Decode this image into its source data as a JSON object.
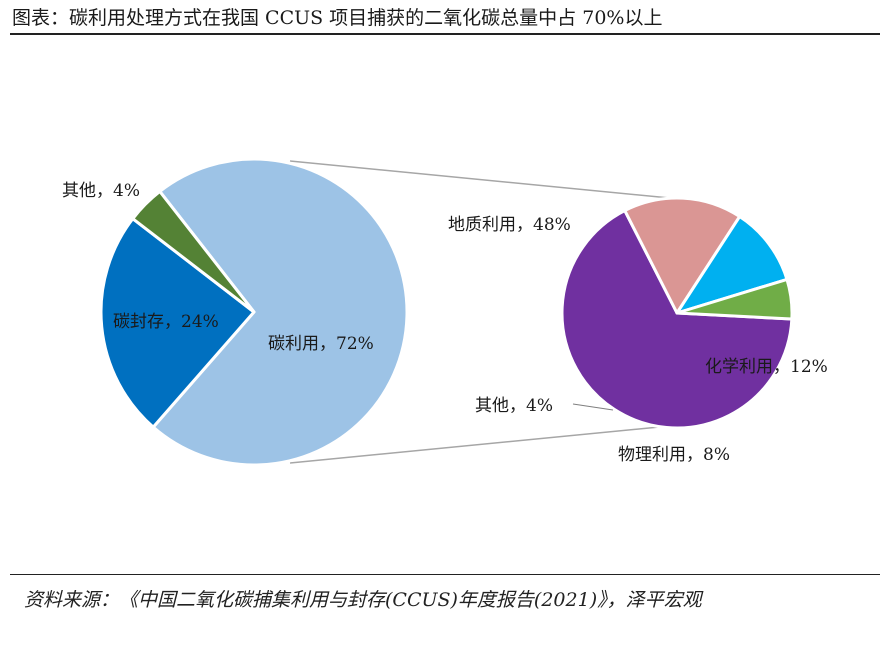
{
  "title": "图表：碳利用处理方式在我国 CCUS 项目捕获的二氧化碳总量中占 70%以上",
  "source": "资料来源：《中国二氧化碳捕集利用与封存(CCUS)年度报告(2021)》，泽平宏观",
  "chart_data": [
    {
      "type": "pie",
      "categories": [
        "碳利用",
        "碳封存",
        "其他"
      ],
      "values": [
        72,
        24,
        4
      ],
      "labels": [
        "碳利用，72%",
        "碳封存，24%",
        "其他，4%"
      ],
      "colors": [
        "#9DC3E6",
        "#0070C0",
        "#548235"
      ]
    },
    {
      "type": "pie",
      "categories": [
        "地质利用",
        "化学利用",
        "物理利用",
        "其他"
      ],
      "values": [
        48,
        12,
        8,
        4
      ],
      "labels": [
        "地质利用，48%",
        "化学利用，12%",
        "物理利用，8%",
        "其他，4%"
      ],
      "colors": [
        "#7030A0",
        "#DA9694",
        "#00B0F0",
        "#70AD47"
      ]
    }
  ]
}
